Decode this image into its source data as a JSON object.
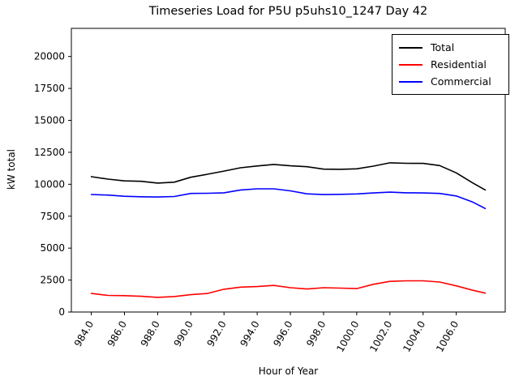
{
  "chart_data": {
    "type": "line",
    "title": "Timeseries Load for P5U p5uhs10_1247  Day 42",
    "xlabel": "Hour of Year",
    "ylabel": "kW total",
    "xlim": [
      982.8,
      1008.95
    ],
    "ylim": [
      0,
      22200
    ],
    "xticks": [
      984,
      986,
      988,
      990,
      992,
      994,
      996,
      998,
      1000,
      1002,
      1004,
      1006
    ],
    "xtick_labels": [
      "984.0",
      "986.0",
      "988.0",
      "990.0",
      "992.0",
      "994.0",
      "996.0",
      "998.0",
      "1000.0",
      "1002.0",
      "1004.0",
      "1006.0"
    ],
    "yticks": [
      0,
      2500,
      5000,
      7500,
      10000,
      12500,
      15000,
      17500,
      20000
    ],
    "ytick_labels": [
      "0",
      "2500",
      "5000",
      "7500",
      "10000",
      "12500",
      "15000",
      "17500",
      "20000"
    ],
    "grid": false,
    "legend_position": "upper right",
    "x": [
      984,
      985,
      986,
      987,
      988,
      989,
      990,
      991,
      992,
      993,
      994,
      995,
      996,
      997,
      998,
      999,
      1000,
      1001,
      1002,
      1003,
      1004,
      1005,
      1006,
      1007,
      1007.75
    ],
    "series": [
      {
        "name": "Total",
        "color": "#000000",
        "values": [
          10590,
          10400,
          10260,
          10230,
          10090,
          10160,
          10550,
          10780,
          11030,
          11290,
          11430,
          11550,
          11440,
          11370,
          11180,
          11170,
          11210,
          11420,
          11680,
          11640,
          11630,
          11460,
          10890,
          10100,
          9550
        ]
      },
      {
        "name": "Residential",
        "color": "#ff0000",
        "values": [
          1450,
          1300,
          1280,
          1230,
          1150,
          1210,
          1360,
          1450,
          1780,
          1950,
          1990,
          2080,
          1900,
          1800,
          1900,
          1870,
          1830,
          2170,
          2400,
          2440,
          2440,
          2350,
          2050,
          1700,
          1480
        ]
      },
      {
        "name": "Commercial",
        "color": "#0000ff",
        "values": [
          9200,
          9150,
          9060,
          9020,
          9000,
          9040,
          9280,
          9290,
          9330,
          9550,
          9640,
          9640,
          9480,
          9250,
          9190,
          9210,
          9240,
          9320,
          9380,
          9330,
          9320,
          9280,
          9080,
          8600,
          8100
        ]
      }
    ]
  }
}
